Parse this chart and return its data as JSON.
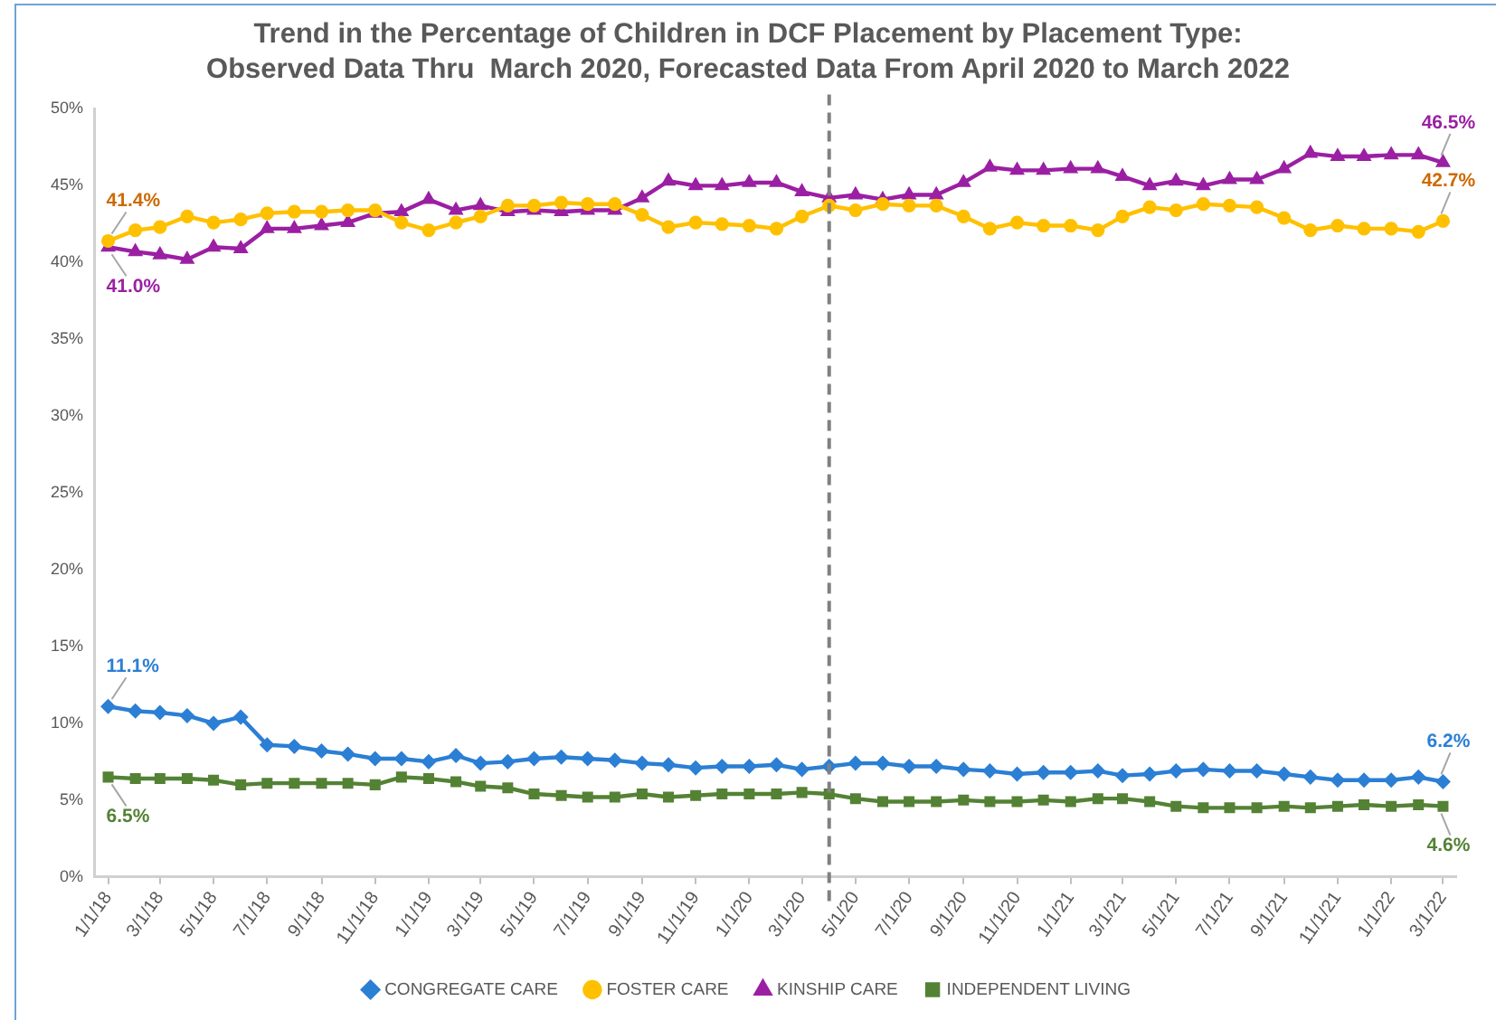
{
  "chart_data": {
    "type": "line",
    "title": "Trend in the Percentage of Children in DCF Placement by Placement Type:",
    "subtitle": "Observed Data Thru  March 2020, Forecasted Data From April 2020 to March 2022",
    "x": [
      "2018-01-01",
      "2018-02-01",
      "2018-03-01",
      "2018-04-01",
      "2018-05-01",
      "2018-06-01",
      "2018-07-01",
      "2018-08-01",
      "2018-09-01",
      "2018-10-01",
      "2018-11-01",
      "2018-12-01",
      "2019-01-01",
      "2019-02-01",
      "2019-03-01",
      "2019-04-01",
      "2019-05-01",
      "2019-06-01",
      "2019-07-01",
      "2019-08-01",
      "2019-09-01",
      "2019-10-01",
      "2019-11-01",
      "2019-12-01",
      "2020-01-01",
      "2020-02-01",
      "2020-03-01",
      "2020-04-01",
      "2020-05-01",
      "2020-06-01",
      "2020-07-01",
      "2020-08-01",
      "2020-09-01",
      "2020-10-01",
      "2020-11-01",
      "2020-12-01",
      "2021-01-01",
      "2021-02-01",
      "2021-03-01",
      "2021-04-01",
      "2021-05-01",
      "2021-06-01",
      "2021-07-01",
      "2021-08-01",
      "2021-09-01",
      "2021-10-01",
      "2021-11-01",
      "2021-12-01",
      "2022-01-01",
      "2022-02-01",
      "2022-03-01"
    ],
    "series": [
      {
        "name": "CONGREGATE CARE",
        "color": "#2b7fd4",
        "marker": "diamond",
        "values": [
          11.1,
          10.8,
          10.7,
          10.5,
          10.0,
          10.4,
          8.6,
          8.5,
          8.2,
          8.0,
          7.7,
          7.7,
          7.5,
          7.9,
          7.4,
          7.5,
          7.7,
          7.8,
          7.7,
          7.6,
          7.4,
          7.3,
          7.1,
          7.2,
          7.2,
          7.3,
          7.0,
          7.2,
          7.4,
          7.4,
          7.2,
          7.2,
          7.0,
          6.9,
          6.7,
          6.8,
          6.8,
          6.9,
          6.6,
          6.7,
          6.9,
          7.0,
          6.9,
          6.9,
          6.7,
          6.5,
          6.3,
          6.3,
          6.3,
          6.5,
          6.2
        ],
        "value_labels": [
          "11.1%",
          null,
          null,
          null,
          null,
          null,
          null,
          null,
          null,
          null,
          null,
          null,
          null,
          null,
          null,
          null,
          null,
          null,
          null,
          null,
          null,
          null,
          null,
          null,
          null,
          null,
          null,
          null,
          null,
          null,
          null,
          null,
          null,
          null,
          null,
          null,
          null,
          null,
          null,
          null,
          null,
          null,
          null,
          null,
          null,
          null,
          null,
          null,
          null,
          null,
          "6.2%"
        ]
      },
      {
        "name": "FOSTER CARE",
        "color": "#ffc000",
        "marker": "circle",
        "values": [
          41.4,
          42.1,
          42.3,
          43.0,
          42.6,
          42.8,
          43.2,
          43.3,
          43.3,
          43.4,
          43.4,
          42.6,
          42.1,
          42.6,
          43.0,
          43.7,
          43.7,
          43.9,
          43.8,
          43.8,
          43.1,
          42.3,
          42.6,
          42.5,
          42.4,
          42.2,
          43.0,
          43.7,
          43.4,
          43.8,
          43.7,
          43.7,
          43.0,
          42.2,
          42.6,
          42.4,
          42.4,
          42.1,
          43.0,
          43.6,
          43.4,
          43.8,
          43.7,
          43.6,
          42.9,
          42.1,
          42.4,
          42.2,
          42.2,
          42.0,
          42.7
        ],
        "value_labels": [
          "41.4%",
          null,
          null,
          null,
          null,
          null,
          null,
          null,
          null,
          null,
          null,
          null,
          null,
          null,
          null,
          null,
          null,
          null,
          null,
          null,
          null,
          null,
          null,
          null,
          null,
          null,
          null,
          null,
          null,
          null,
          null,
          null,
          null,
          null,
          null,
          null,
          null,
          null,
          null,
          null,
          null,
          null,
          null,
          null,
          null,
          null,
          null,
          null,
          null,
          null,
          "42.7%"
        ]
      },
      {
        "name": "KINSHIP CARE",
        "color": "#9b1fa3",
        "marker": "triangle",
        "values": [
          41.0,
          40.7,
          40.5,
          40.2,
          41.0,
          40.9,
          42.2,
          42.2,
          42.4,
          42.6,
          43.2,
          43.3,
          44.1,
          43.4,
          43.7,
          43.3,
          43.4,
          43.3,
          43.4,
          43.4,
          44.2,
          45.3,
          45.0,
          45.0,
          45.2,
          45.2,
          44.6,
          44.2,
          44.4,
          44.1,
          44.4,
          44.4,
          45.2,
          46.2,
          46.0,
          46.0,
          46.1,
          46.1,
          45.6,
          45.0,
          45.3,
          45.0,
          45.4,
          45.4,
          46.1,
          47.1,
          46.9,
          46.9,
          47.0,
          47.0,
          46.5
        ],
        "value_labels": [
          "41.0%",
          null,
          null,
          null,
          null,
          null,
          null,
          null,
          null,
          null,
          null,
          null,
          null,
          null,
          null,
          null,
          null,
          null,
          null,
          null,
          null,
          null,
          null,
          null,
          null,
          null,
          null,
          null,
          null,
          null,
          null,
          null,
          null,
          null,
          null,
          null,
          null,
          null,
          null,
          null,
          null,
          null,
          null,
          null,
          null,
          null,
          null,
          null,
          null,
          null,
          "46.5%"
        ]
      },
      {
        "name": "INDEPENDENT LIVING",
        "color": "#548235",
        "marker": "square",
        "values": [
          6.5,
          6.4,
          6.4,
          6.4,
          6.3,
          6.0,
          6.1,
          6.1,
          6.1,
          6.1,
          6.0,
          6.5,
          6.4,
          6.2,
          5.9,
          5.8,
          5.4,
          5.3,
          5.2,
          5.2,
          5.4,
          5.2,
          5.3,
          5.4,
          5.4,
          5.4,
          5.5,
          5.4,
          5.1,
          4.9,
          4.9,
          4.9,
          5.0,
          4.9,
          4.9,
          5.0,
          4.9,
          5.1,
          5.1,
          4.9,
          4.6,
          4.5,
          4.5,
          4.5,
          4.6,
          4.5,
          4.6,
          4.7,
          4.6,
          4.7,
          4.6
        ],
        "value_labels": [
          "6.5%",
          null,
          null,
          null,
          null,
          null,
          null,
          null,
          null,
          null,
          null,
          null,
          null,
          null,
          null,
          null,
          null,
          null,
          null,
          null,
          null,
          null,
          null,
          null,
          null,
          null,
          null,
          null,
          null,
          null,
          null,
          null,
          null,
          null,
          null,
          null,
          null,
          null,
          null,
          null,
          null,
          null,
          null,
          null,
          null,
          null,
          null,
          null,
          null,
          null,
          "4.6%"
        ]
      }
    ],
    "xlim": [
      "2017-12-16",
      "2022-03-16"
    ],
    "xticks": [
      {
        "value": "2018-01-01",
        "label": "1/1/18"
      },
      {
        "value": "2018-03-01",
        "label": "3/1/18"
      },
      {
        "value": "2018-05-01",
        "label": "5/1/18"
      },
      {
        "value": "2018-07-01",
        "label": "7/1/18"
      },
      {
        "value": "2018-09-01",
        "label": "9/1/18"
      },
      {
        "value": "2018-11-01",
        "label": "11/1/18"
      },
      {
        "value": "2019-01-01",
        "label": "1/1/19"
      },
      {
        "value": "2019-03-01",
        "label": "3/1/19"
      },
      {
        "value": "2019-05-01",
        "label": "5/1/19"
      },
      {
        "value": "2019-07-01",
        "label": "7/1/19"
      },
      {
        "value": "2019-09-01",
        "label": "9/1/19"
      },
      {
        "value": "2019-11-01",
        "label": "11/1/19"
      },
      {
        "value": "2020-01-01",
        "label": "1/1/20"
      },
      {
        "value": "2020-03-01",
        "label": "3/1/20"
      },
      {
        "value": "2020-05-01",
        "label": "5/1/20"
      },
      {
        "value": "2020-07-01",
        "label": "7/1/20"
      },
      {
        "value": "2020-09-01",
        "label": "9/1/20"
      },
      {
        "value": "2020-11-01",
        "label": "11/1/20"
      },
      {
        "value": "2021-01-01",
        "label": "1/1/21"
      },
      {
        "value": "2021-03-01",
        "label": "3/1/21"
      },
      {
        "value": "2021-05-01",
        "label": "5/1/21"
      },
      {
        "value": "2021-07-01",
        "label": "7/1/21"
      },
      {
        "value": "2021-09-01",
        "label": "9/1/21"
      },
      {
        "value": "2021-11-01",
        "label": "11/1/21"
      },
      {
        "value": "2022-01-01",
        "label": "1/1/22"
      },
      {
        "value": "2022-03-01",
        "label": "3/1/22"
      }
    ],
    "ylim": [
      0,
      50
    ],
    "yticks": [
      {
        "value": 0,
        "label": "0%"
      },
      {
        "value": 5,
        "label": "5%"
      },
      {
        "value": 10,
        "label": "10%"
      },
      {
        "value": 15,
        "label": "15%"
      },
      {
        "value": 20,
        "label": "20%"
      },
      {
        "value": 25,
        "label": "25%"
      },
      {
        "value": 30,
        "label": "30%"
      },
      {
        "value": 35,
        "label": "35%"
      },
      {
        "value": 40,
        "label": "40%"
      },
      {
        "value": 45,
        "label": "45%"
      },
      {
        "value": 50,
        "label": "50%"
      }
    ],
    "ref_lines": [
      {
        "axis": "x",
        "value": "2020-04-01",
        "color": "#808080",
        "line_style": "dashed"
      }
    ],
    "legend": "bottom",
    "grid": false,
    "line_style": "solid"
  }
}
